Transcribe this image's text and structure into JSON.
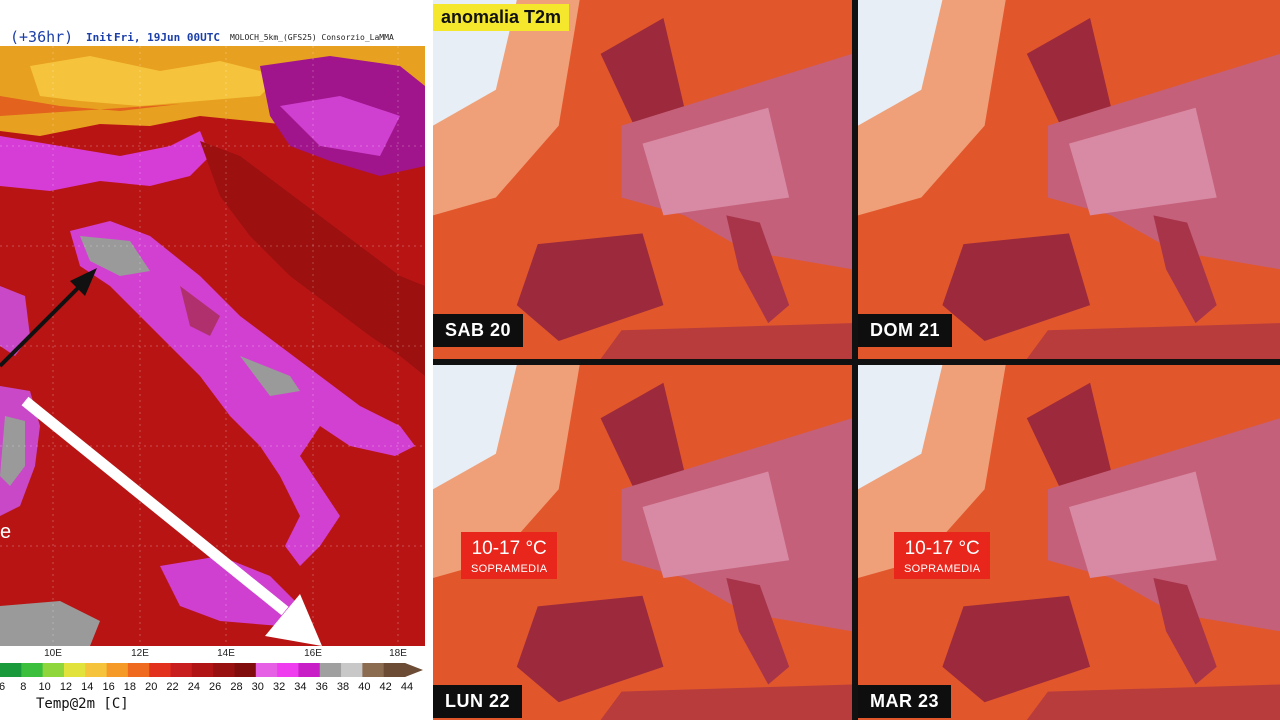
{
  "left_map": {
    "forecast_hour": "(+36hr)",
    "init_label": "Init:",
    "init_value": "Fri, 19Jun 00UTC",
    "model": "MOLOCH_5km_(GFS25) Consorzio_LaMMA",
    "longitudes": [
      "10E",
      "12E",
      "14E",
      "16E",
      "18E"
    ],
    "colorbar_ticks": [
      "6",
      "8",
      "10",
      "12",
      "14",
      "16",
      "18",
      "20",
      "22",
      "24",
      "26",
      "28",
      "30",
      "32",
      "34",
      "36",
      "38",
      "40",
      "42",
      "44"
    ],
    "colorbar_colors": [
      "#1a9a3a",
      "#3cbf3c",
      "#8fd63c",
      "#e2e23c",
      "#f5c43c",
      "#f59a28",
      "#ef6a1e",
      "#e2321e",
      "#c81e1e",
      "#b01414",
      "#981010",
      "#800c0c",
      "#e660e6",
      "#ef3cef",
      "#c81ec8",
      "#a0a0a0",
      "#c8c8c8",
      "#8c6c50",
      "#6c4c34"
    ],
    "colorbar_title": "Temp@2m [C]",
    "partial_text": "e"
  },
  "right_maps": {
    "title": "anomalia T2m",
    "panels": [
      {
        "day": "SAB 20"
      },
      {
        "day": "DOM 21"
      },
      {
        "day": "LUN 22",
        "anomaly_range": "10-17 °C",
        "anomaly_note": "SOPRAMEDIA"
      },
      {
        "day": "MAR 23",
        "anomaly_range": "10-17 °C",
        "anomaly_note": "SOPRAMEDIA"
      }
    ]
  }
}
